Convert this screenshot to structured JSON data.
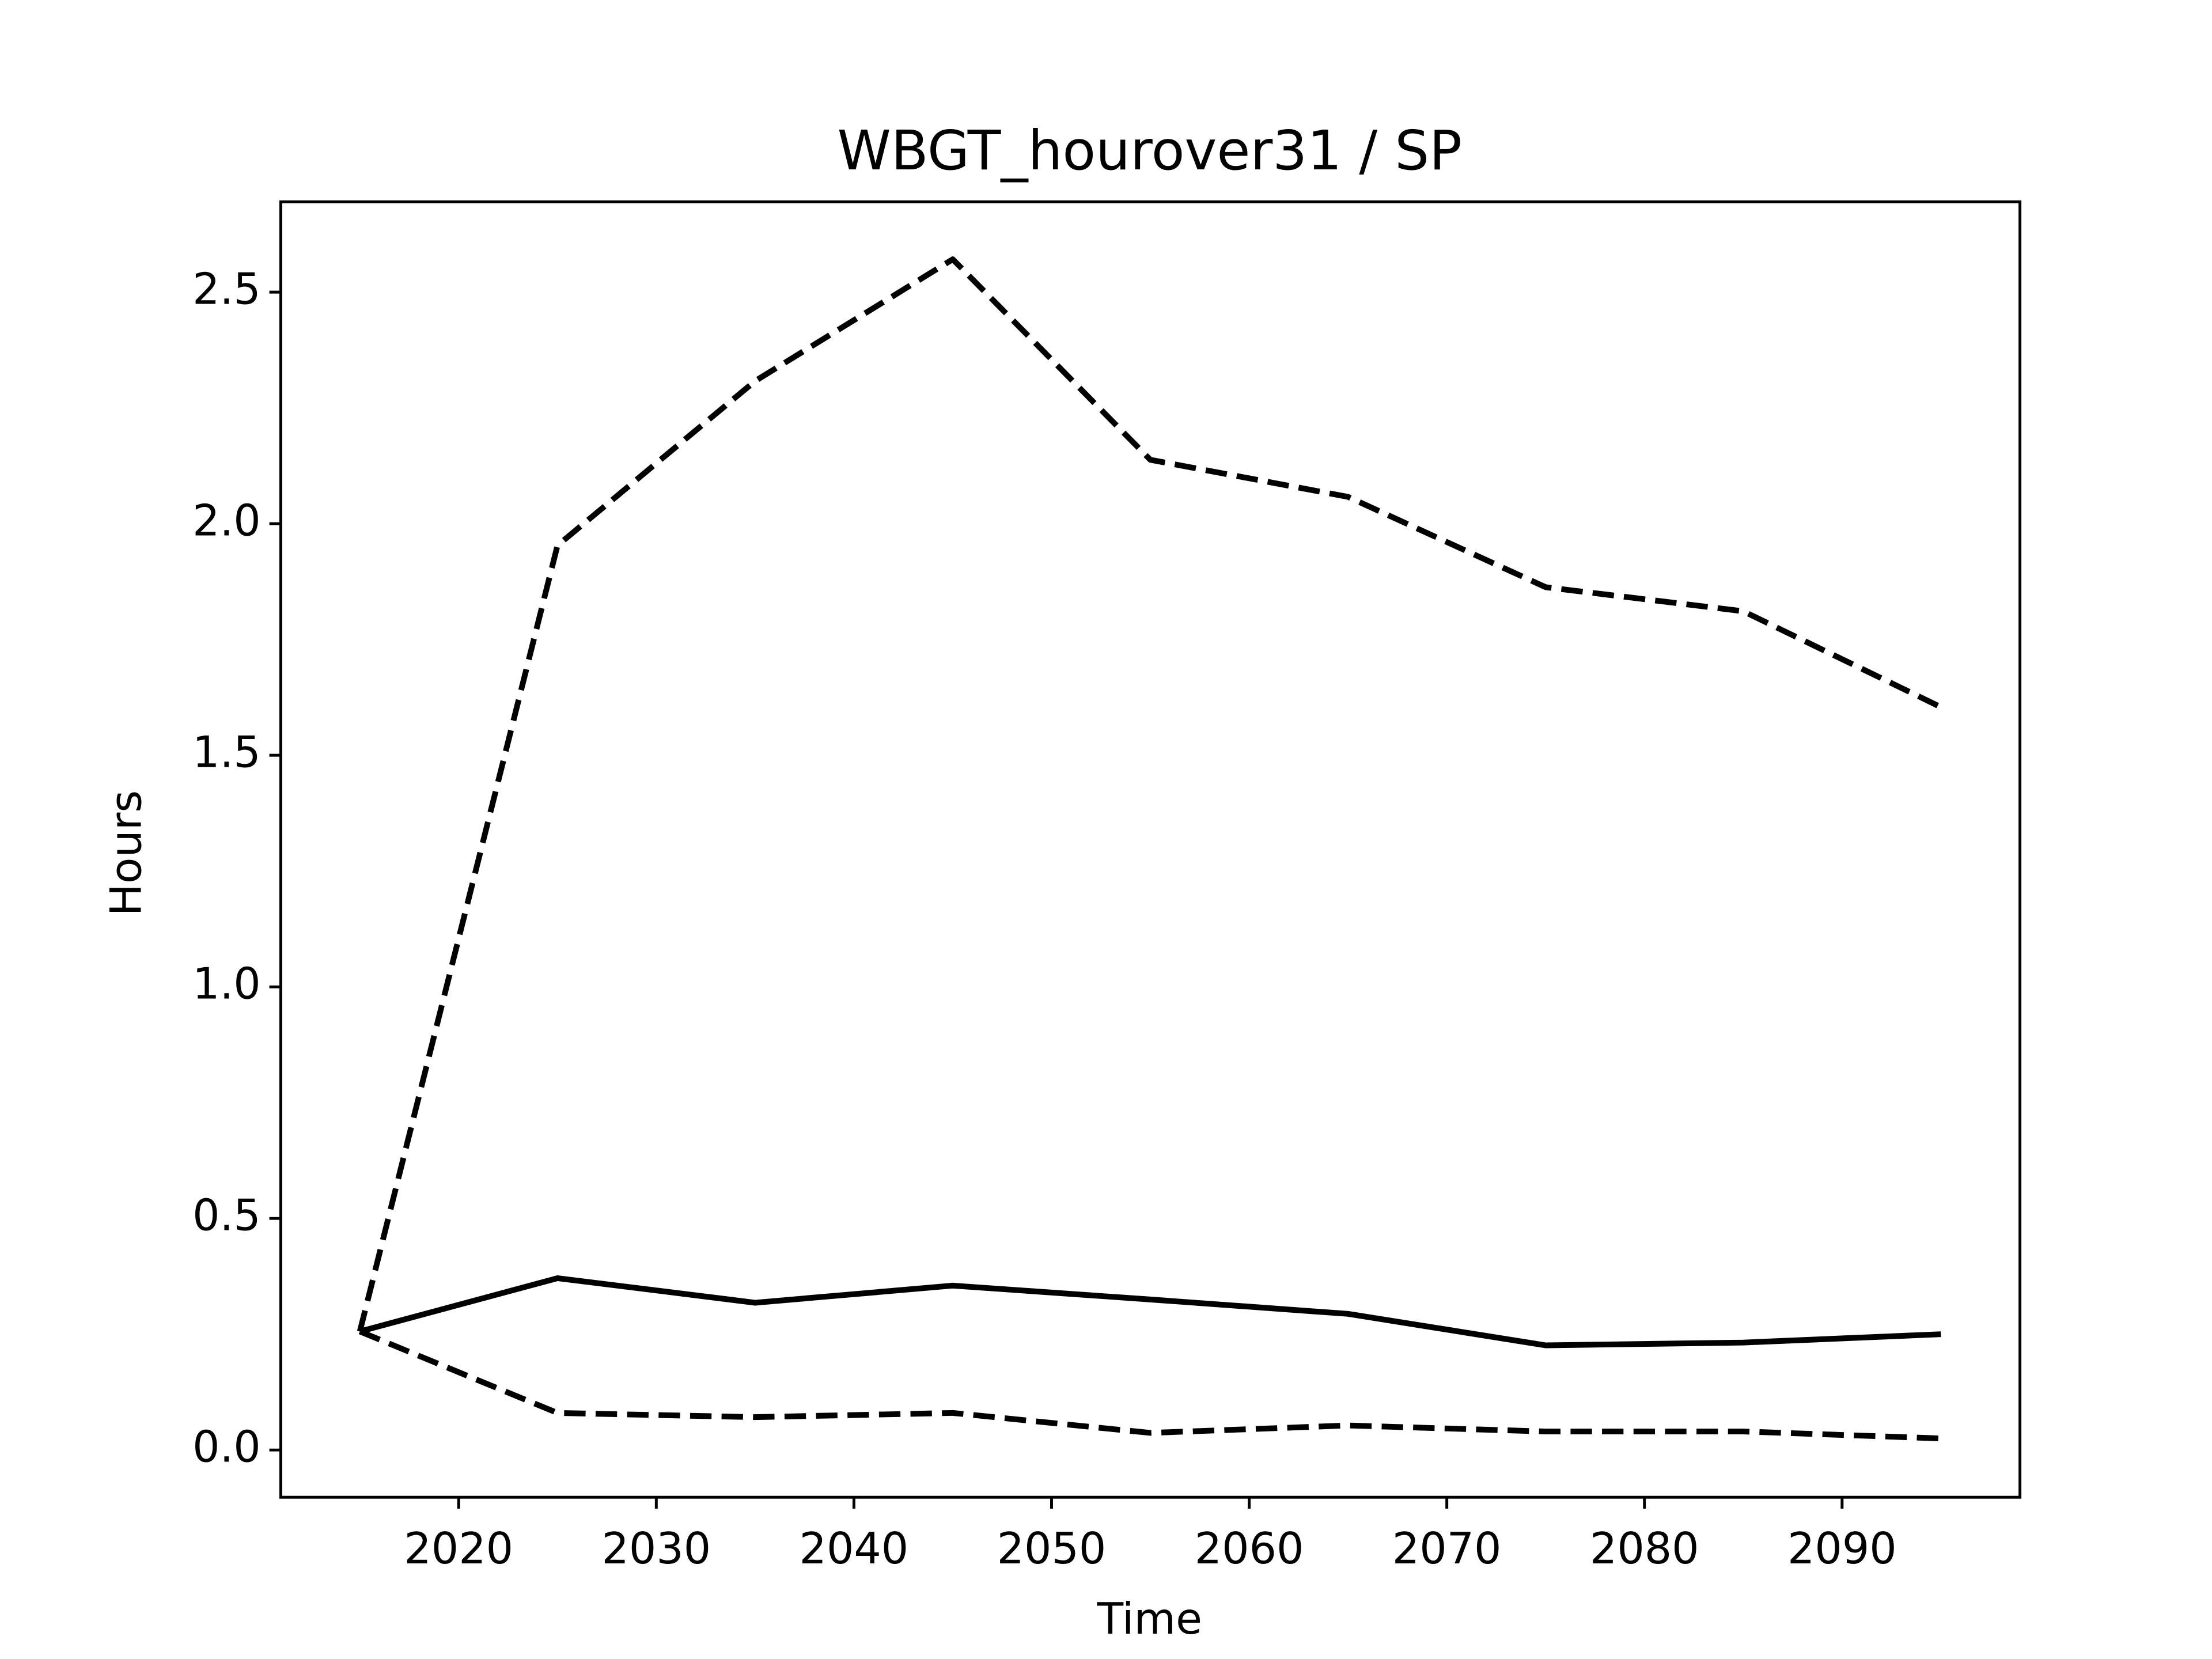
{
  "chart_data": {
    "type": "line",
    "title": "WBGT_hourover31 / SP",
    "x_label": "Time",
    "y_label": "Hours",
    "x": [
      2015,
      2025,
      2035,
      2045,
      2055,
      2065,
      2075,
      2085,
      2095
    ],
    "series": [
      {
        "color": "#000000",
        "style": "solid",
        "values": [
          0.256,
          0.371,
          0.318,
          0.355,
          0.325,
          0.294,
          0.226,
          0.232,
          0.25
        ]
      },
      {
        "color": "#000000",
        "style": "dashed",
        "values": [
          0.256,
          1.953,
          2.308,
          2.571,
          2.138,
          2.058,
          1.863,
          1.811,
          1.604
        ]
      },
      {
        "color": "#000000",
        "style": "dashed",
        "values": [
          0.256,
          0.08,
          0.071,
          0.08,
          0.037,
          0.053,
          0.04,
          0.04,
          0.025
        ]
      }
    ],
    "xlim": [
      2011,
      2099
    ],
    "xticks": [
      2020,
      2030,
      2040,
      2050,
      2060,
      2070,
      2080,
      2090
    ],
    "ylim": [
      -0.102,
      2.695
    ],
    "yticks": [
      {
        "value": 0,
        "label": "0.0"
      },
      0.5,
      {
        "value": 1,
        "label": "1.0"
      },
      1.5,
      {
        "value": 2,
        "label": "2.0"
      },
      2.5
    ],
    "grid": false
  }
}
